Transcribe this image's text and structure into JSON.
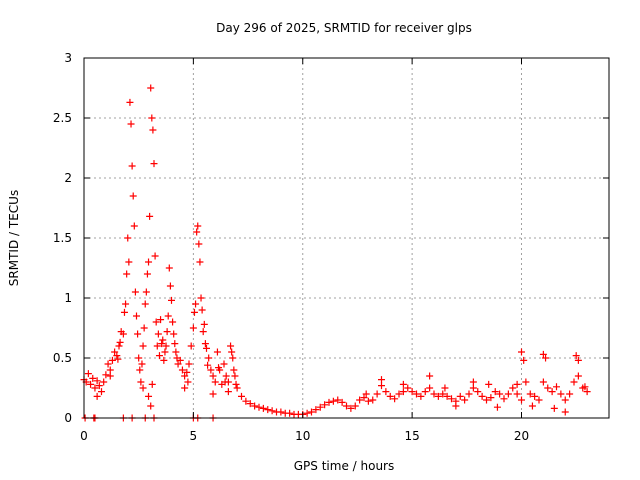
{
  "chart_data": {
    "type": "scatter",
    "title": "Day 296 of 2025, SRMTID for receiver glps",
    "xlabel": "GPS time / hours",
    "ylabel": "SRMTID / TECUs",
    "xlim": [
      0,
      24
    ],
    "ylim": [
      0,
      3
    ],
    "xticks": [
      0,
      5,
      10,
      15,
      20
    ],
    "yticks": [
      0,
      0.5,
      1,
      1.5,
      2,
      2.5,
      3
    ],
    "grid": true,
    "marker": "+",
    "series": [
      {
        "name": "SRMTID",
        "color": "#ff0000",
        "points": [
          [
            0.0,
            0.32
          ],
          [
            0.1,
            0.3
          ],
          [
            0.2,
            0.37
          ],
          [
            0.3,
            0.28
          ],
          [
            0.4,
            0.33
          ],
          [
            0.5,
            0.25
          ],
          [
            0.6,
            0.31
          ],
          [
            0.7,
            0.27
          ],
          [
            0.8,
            0.22
          ],
          [
            0.9,
            0.3
          ],
          [
            1.0,
            0.36
          ],
          [
            1.1,
            0.45
          ],
          [
            1.2,
            0.4
          ],
          [
            1.3,
            0.48
          ],
          [
            1.4,
            0.55
          ],
          [
            1.5,
            0.52
          ],
          [
            1.6,
            0.6
          ],
          [
            1.7,
            0.72
          ],
          [
            1.8,
            0.7
          ],
          [
            1.9,
            0.95
          ],
          [
            2.0,
            1.5
          ],
          [
            2.05,
            1.3
          ],
          [
            2.1,
            2.63
          ],
          [
            2.15,
            2.45
          ],
          [
            2.2,
            2.1
          ],
          [
            2.25,
            1.85
          ],
          [
            2.3,
            1.6
          ],
          [
            2.35,
            1.05
          ],
          [
            2.4,
            0.85
          ],
          [
            2.5,
            0.5
          ],
          [
            2.6,
            0.3
          ],
          [
            2.7,
            0.6
          ],
          [
            2.8,
            0.95
          ],
          [
            2.9,
            1.2
          ],
          [
            3.0,
            1.68
          ],
          [
            3.05,
            2.75
          ],
          [
            3.1,
            2.5
          ],
          [
            3.15,
            2.4
          ],
          [
            3.2,
            2.12
          ],
          [
            3.25,
            1.35
          ],
          [
            3.3,
            0.8
          ],
          [
            3.4,
            0.7
          ],
          [
            3.5,
            0.82
          ],
          [
            3.6,
            0.65
          ],
          [
            3.7,
            0.55
          ],
          [
            3.8,
            0.72
          ],
          [
            3.9,
            1.25
          ],
          [
            4.0,
            0.98
          ],
          [
            4.1,
            0.7
          ],
          [
            4.2,
            0.55
          ],
          [
            4.3,
            0.45
          ],
          [
            4.4,
            0.48
          ],
          [
            4.5,
            0.4
          ],
          [
            4.6,
            0.35
          ],
          [
            4.7,
            0.38
          ],
          [
            4.8,
            0.45
          ],
          [
            4.9,
            0.6
          ],
          [
            5.0,
            0.75
          ],
          [
            5.1,
            0.95
          ],
          [
            5.15,
            1.55
          ],
          [
            5.2,
            1.6
          ],
          [
            5.25,
            1.45
          ],
          [
            5.3,
            1.3
          ],
          [
            5.4,
            0.9
          ],
          [
            5.5,
            0.78
          ],
          [
            5.6,
            0.58
          ],
          [
            5.7,
            0.5
          ],
          [
            5.8,
            0.4
          ],
          [
            5.9,
            0.35
          ],
          [
            6.0,
            0.3
          ],
          [
            6.1,
            0.55
          ],
          [
            6.2,
            0.4
          ],
          [
            6.3,
            0.28
          ],
          [
            6.4,
            0.45
          ],
          [
            6.5,
            0.35
          ],
          [
            6.6,
            0.22
          ],
          [
            6.7,
            0.6
          ],
          [
            6.8,
            0.5
          ],
          [
            6.9,
            0.35
          ],
          [
            7.0,
            0.25
          ],
          [
            7.2,
            0.18
          ],
          [
            7.4,
            0.14
          ],
          [
            7.6,
            0.12
          ],
          [
            7.8,
            0.1
          ],
          [
            8.0,
            0.09
          ],
          [
            8.2,
            0.08
          ],
          [
            8.4,
            0.07
          ],
          [
            8.6,
            0.06
          ],
          [
            8.8,
            0.05
          ],
          [
            9.0,
            0.05
          ],
          [
            9.2,
            0.04
          ],
          [
            9.4,
            0.04
          ],
          [
            9.6,
            0.03
          ],
          [
            9.8,
            0.03
          ],
          [
            10.0,
            0.03
          ],
          [
            10.2,
            0.04
          ],
          [
            10.4,
            0.05
          ],
          [
            10.6,
            0.07
          ],
          [
            10.8,
            0.09
          ],
          [
            11.0,
            0.11
          ],
          [
            11.2,
            0.13
          ],
          [
            11.4,
            0.14
          ],
          [
            11.6,
            0.15
          ],
          [
            11.8,
            0.13
          ],
          [
            12.0,
            0.1
          ],
          [
            12.2,
            0.08
          ],
          [
            12.4,
            0.1
          ],
          [
            12.6,
            0.15
          ],
          [
            12.8,
            0.17
          ],
          [
            13.0,
            0.14
          ],
          [
            13.2,
            0.15
          ],
          [
            13.4,
            0.2
          ],
          [
            13.6,
            0.27
          ],
          [
            13.8,
            0.22
          ],
          [
            14.0,
            0.18
          ],
          [
            14.2,
            0.16
          ],
          [
            14.4,
            0.2
          ],
          [
            14.6,
            0.22
          ],
          [
            14.8,
            0.25
          ],
          [
            15.0,
            0.22
          ],
          [
            15.2,
            0.2
          ],
          [
            15.4,
            0.18
          ],
          [
            15.6,
            0.22
          ],
          [
            15.8,
            0.25
          ],
          [
            16.0,
            0.2
          ],
          [
            16.2,
            0.18
          ],
          [
            16.4,
            0.2
          ],
          [
            16.6,
            0.18
          ],
          [
            16.8,
            0.16
          ],
          [
            17.0,
            0.14
          ],
          [
            17.2,
            0.18
          ],
          [
            17.4,
            0.15
          ],
          [
            17.6,
            0.2
          ],
          [
            17.8,
            0.25
          ],
          [
            18.0,
            0.22
          ],
          [
            18.2,
            0.18
          ],
          [
            18.4,
            0.15
          ],
          [
            18.6,
            0.17
          ],
          [
            18.8,
            0.22
          ],
          [
            19.0,
            0.2
          ],
          [
            19.2,
            0.16
          ],
          [
            19.4,
            0.2
          ],
          [
            19.6,
            0.25
          ],
          [
            19.8,
            0.2
          ],
          [
            20.0,
            0.15
          ],
          [
            20.2,
            0.3
          ],
          [
            20.4,
            0.2
          ],
          [
            20.6,
            0.18
          ],
          [
            20.8,
            0.15
          ],
          [
            21.0,
            0.3
          ],
          [
            21.2,
            0.25
          ],
          [
            21.4,
            0.22
          ],
          [
            21.6,
            0.26
          ],
          [
            21.8,
            0.2
          ],
          [
            22.0,
            0.15
          ],
          [
            22.2,
            0.2
          ],
          [
            22.4,
            0.3
          ],
          [
            22.6,
            0.35
          ],
          [
            22.8,
            0.25
          ],
          [
            23.0,
            0.22
          ],
          [
            1.55,
            0.49
          ],
          [
            1.65,
            0.63
          ],
          [
            1.85,
            0.88
          ],
          [
            1.95,
            1.2
          ],
          [
            2.45,
            0.7
          ],
          [
            2.55,
            0.4
          ],
          [
            2.65,
            0.45
          ],
          [
            2.75,
            0.75
          ],
          [
            2.85,
            1.05
          ],
          [
            2.95,
            1.3
          ],
          [
            3.35,
            0.6
          ],
          [
            3.45,
            0.52
          ],
          [
            3.55,
            0.62
          ],
          [
            3.65,
            0.48
          ],
          [
            3.75,
            0.6
          ],
          [
            3.85,
            0.85
          ],
          [
            3.95,
            1.1
          ],
          [
            4.05,
            0.8
          ],
          [
            4.15,
            0.62
          ],
          [
            4.25,
            0.5
          ],
          [
            5.05,
            0.88
          ],
          [
            5.35,
            1.0
          ],
          [
            5.45,
            0.72
          ],
          [
            5.55,
            0.62
          ],
          [
            5.65,
            0.44
          ],
          [
            6.15,
            0.42
          ],
          [
            6.45,
            0.3
          ],
          [
            6.75,
            0.55
          ],
          [
            6.85,
            0.4
          ],
          [
            6.95,
            0.28
          ],
          [
            3.05,
            0.1
          ],
          [
            3.12,
            0.28
          ],
          [
            2.95,
            0.18
          ],
          [
            2.7,
            0.25
          ],
          [
            4.6,
            0.25
          ],
          [
            4.75,
            0.3
          ],
          [
            5.9,
            0.2
          ],
          [
            6.6,
            0.3
          ],
          [
            1.2,
            0.35
          ],
          [
            0.6,
            0.18
          ],
          [
            0.05,
            0.0
          ],
          [
            0.45,
            0.0
          ],
          [
            0.5,
            0.0
          ],
          [
            1.8,
            0.0
          ],
          [
            2.2,
            0.0
          ],
          [
            2.8,
            0.0
          ],
          [
            3.2,
            0.0
          ],
          [
            5.0,
            0.0
          ],
          [
            5.2,
            0.0
          ],
          [
            5.9,
            0.0
          ],
          [
            20.0,
            0.55
          ],
          [
            20.1,
            0.48
          ],
          [
            21.0,
            0.53
          ],
          [
            21.1,
            0.5
          ],
          [
            22.5,
            0.52
          ],
          [
            22.6,
            0.48
          ],
          [
            22.9,
            0.26
          ],
          [
            15.8,
            0.35
          ],
          [
            13.6,
            0.32
          ],
          [
            17.8,
            0.3
          ],
          [
            18.5,
            0.28
          ],
          [
            19.8,
            0.28
          ],
          [
            16.5,
            0.25
          ],
          [
            14.6,
            0.28
          ],
          [
            12.9,
            0.2
          ],
          [
            17.0,
            0.1
          ],
          [
            18.9,
            0.09
          ],
          [
            20.5,
            0.1
          ],
          [
            21.5,
            0.08
          ],
          [
            22.0,
            0.05
          ]
        ]
      }
    ]
  }
}
